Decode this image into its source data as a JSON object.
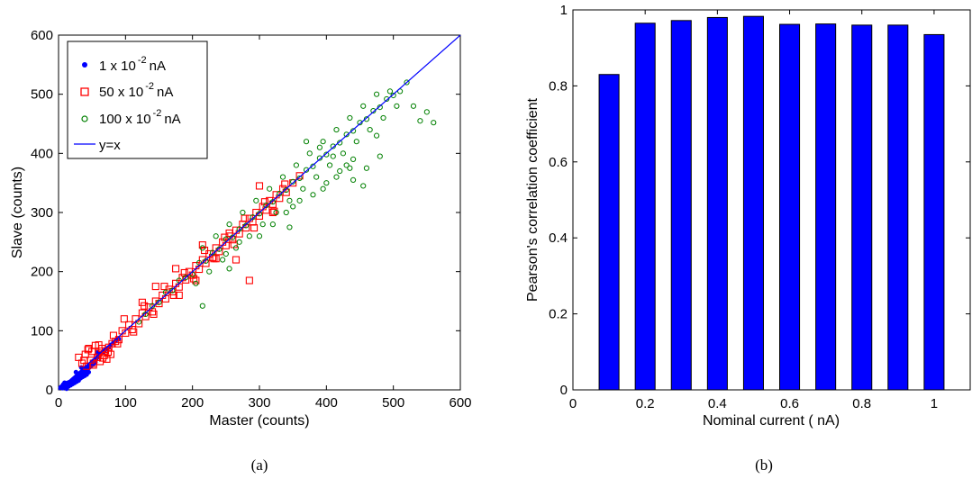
{
  "chart_data": [
    {
      "type": "scatter",
      "panel_caption": "(a)",
      "xlabel": "Master (counts)",
      "ylabel": "Slave (counts)",
      "xlim": [
        0,
        600
      ],
      "ylim": [
        0,
        600
      ],
      "xticks": [
        "0",
        "100",
        "200",
        "300",
        "400",
        "500",
        "600"
      ],
      "yticks": [
        "0",
        "100",
        "200",
        "300",
        "400",
        "500",
        "600"
      ],
      "legend_position": "top-left",
      "series": [
        {
          "name": "1 x 10 -2 nA",
          "name_parts": {
            "base": "1 x 10",
            "exp": "-2",
            "unit": "nA"
          },
          "marker": "dot",
          "color": "#0000ff",
          "x": [
            3,
            5,
            6,
            8,
            9,
            10,
            11,
            12,
            13,
            14,
            15,
            16,
            17,
            18,
            19,
            20,
            21,
            22,
            23,
            24,
            25,
            26,
            27,
            28,
            29,
            30,
            31,
            32,
            33,
            34,
            35,
            36,
            37,
            38,
            39,
            40,
            41,
            42,
            43,
            44,
            45,
            46,
            47,
            48,
            49,
            50,
            51,
            52,
            53,
            54,
            55,
            56,
            58,
            60,
            62,
            64,
            66,
            68,
            70,
            72,
            75,
            78,
            82,
            86,
            90,
            12,
            18,
            24,
            30,
            36,
            42,
            15,
            21,
            27,
            33,
            39,
            45,
            9,
            7,
            26,
            34,
            44,
            52,
            58
          ],
          "y": [
            4,
            6,
            3,
            7,
            10,
            8,
            5,
            11,
            9,
            12,
            7,
            13,
            10,
            14,
            9,
            16,
            12,
            18,
            15,
            20,
            14,
            22,
            18,
            24,
            20,
            26,
            22,
            28,
            25,
            30,
            27,
            32,
            29,
            34,
            31,
            36,
            33,
            38,
            35,
            40,
            37,
            42,
            39,
            44,
            41,
            46,
            43,
            48,
            45,
            50,
            47,
            52,
            55,
            58,
            60,
            62,
            64,
            66,
            68,
            70,
            72,
            76,
            80,
            84,
            86,
            2,
            8,
            12,
            16,
            22,
            26,
            6,
            10,
            14,
            20,
            24,
            30,
            12,
            9,
            30,
            38,
            40,
            49,
            63
          ]
        },
        {
          "name": "50 x 10 -2 nA",
          "name_parts": {
            "base": "50 x 10",
            "exp": "-2",
            "unit": "nA"
          },
          "marker": "square",
          "color": "#ff0000",
          "x": [
            30,
            35,
            40,
            42,
            45,
            48,
            50,
            52,
            55,
            58,
            60,
            62,
            65,
            68,
            70,
            72,
            75,
            78,
            80,
            85,
            38,
            44,
            52,
            60,
            66,
            74,
            82,
            90,
            95,
            100,
            105,
            110,
            115,
            120,
            125,
            130,
            135,
            140,
            145,
            150,
            155,
            160,
            165,
            170,
            175,
            180,
            185,
            190,
            195,
            200,
            205,
            210,
            215,
            220,
            225,
            230,
            235,
            240,
            245,
            250,
            255,
            260,
            265,
            270,
            275,
            280,
            285,
            290,
            295,
            300,
            305,
            310,
            315,
            320,
            325,
            330,
            335,
            340,
            350,
            360,
            88,
            98,
            112,
            128,
            142,
            158,
            172,
            188,
            202,
            218,
            232,
            248,
            262,
            278,
            292,
            308,
            322,
            338,
            175,
            215,
            265,
            285,
            125,
            145,
            255,
            235,
            205,
            320,
            300,
            180
          ],
          "y": [
            55,
            45,
            60,
            40,
            70,
            50,
            65,
            45,
            75,
            55,
            62,
            48,
            70,
            58,
            66,
            52,
            72,
            60,
            78,
            82,
            50,
            68,
            42,
            76,
            54,
            64,
            92,
            85,
            100,
            96,
            110,
            102,
            120,
            112,
            130,
            124,
            140,
            132,
            150,
            146,
            160,
            154,
            170,
            166,
            180,
            174,
            190,
            186,
            200,
            194,
            210,
            204,
            220,
            214,
            230,
            224,
            240,
            234,
            250,
            244,
            260,
            254,
            270,
            264,
            280,
            274,
            290,
            284,
            300,
            294,
            310,
            304,
            320,
            314,
            330,
            324,
            340,
            334,
            350,
            362,
            78,
            120,
            98,
            142,
            128,
            175,
            160,
            198,
            188,
            236,
            222,
            258,
            246,
            290,
            274,
            318,
            302,
            348,
            205,
            245,
            220,
            185,
            148,
            175,
            265,
            222,
            185,
            300,
            345,
            160
          ]
        },
        {
          "name": "100 x 10 -2 nA",
          "name_parts": {
            "base": "100 x 10",
            "exp": "-2",
            "unit": "nA"
          },
          "marker": "circle",
          "color": "#008000",
          "x": [
            120,
            130,
            140,
            150,
            160,
            170,
            180,
            190,
            200,
            210,
            220,
            230,
            240,
            250,
            260,
            270,
            280,
            290,
            300,
            310,
            320,
            330,
            340,
            350,
            360,
            370,
            380,
            390,
            400,
            410,
            420,
            430,
            440,
            450,
            460,
            470,
            480,
            490,
            500,
            510,
            520,
            530,
            540,
            550,
            560,
            205,
            225,
            245,
            265,
            285,
            305,
            325,
            345,
            365,
            385,
            405,
            425,
            445,
            465,
            485,
            505,
            215,
            235,
            255,
            275,
            295,
            315,
            335,
            355,
            375,
            395,
            415,
            435,
            455,
            475,
            495,
            370,
            390,
            410,
            430,
            350,
            380,
            400,
            420,
            440,
            300,
            320,
            340,
            360,
            440,
            460,
            480,
            250,
            270,
            215,
            255,
            395,
            415,
            435,
            455,
            475,
            345
          ],
          "y": [
            115,
            128,
            142,
            148,
            165,
            168,
            185,
            190,
            195,
            215,
            218,
            232,
            238,
            255,
            258,
            272,
            278,
            292,
            298,
            312,
            318,
            332,
            338,
            352,
            358,
            372,
            378,
            392,
            398,
            412,
            418,
            432,
            438,
            452,
            458,
            472,
            478,
            492,
            498,
            505,
            520,
            480,
            455,
            470,
            452,
            180,
            200,
            220,
            240,
            260,
            280,
            300,
            320,
            340,
            360,
            380,
            400,
            420,
            440,
            460,
            480,
            240,
            260,
            280,
            300,
            320,
            340,
            360,
            380,
            400,
            420,
            440,
            460,
            480,
            500,
            505,
            420,
            410,
            395,
            380,
            310,
            330,
            350,
            370,
            390,
            260,
            280,
            300,
            320,
            355,
            375,
            395,
            230,
            250,
            142,
            205,
            340,
            360,
            375,
            345,
            430,
            275
          ]
        },
        {
          "name": "y=x",
          "marker": "line",
          "color": "#0000ff",
          "x": [
            0,
            600
          ],
          "y": [
            0,
            600
          ]
        }
      ]
    },
    {
      "type": "bar",
      "panel_caption": "(b)",
      "xlabel": "Nominal current ( nA)",
      "ylabel": "Pearson's correlation coefficient",
      "xlim": [
        0,
        1.1
      ],
      "ylim": [
        0,
        1
      ],
      "xticks": [
        "0",
        "0.2",
        "0.4",
        "0.6",
        "0.8",
        "1"
      ],
      "yticks": [
        "0",
        "0.2",
        "0.4",
        "0.6",
        "0.8",
        "1"
      ],
      "bar_color": "#0000ff",
      "categories": [
        0.1,
        0.2,
        0.3,
        0.4,
        0.5,
        0.6,
        0.7,
        0.8,
        0.9,
        1.0
      ],
      "values": [
        0.83,
        0.965,
        0.972,
        0.98,
        0.983,
        0.962,
        0.963,
        0.96,
        0.96,
        0.935
      ]
    }
  ]
}
